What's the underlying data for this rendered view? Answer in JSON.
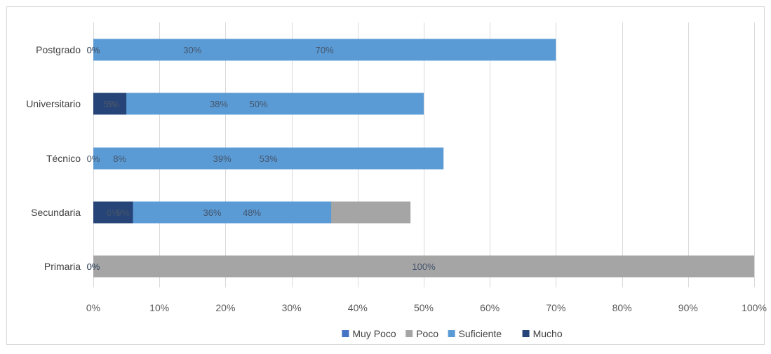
{
  "chart_data": {
    "type": "bar",
    "orientation": "horizontal",
    "stacked": "percent",
    "categories": [
      "Postgrado",
      "Universitario",
      "Técnico",
      "Secundaria",
      "Primaria"
    ],
    "series": [
      {
        "name": "Muy Poco",
        "color": "#4472C4",
        "values": [
          0,
          6,
          8,
          9,
          0
        ],
        "labels": [
          "0%",
          "6%",
          "8%",
          "9%",
          "0%"
        ]
      },
      {
        "name": "Poco",
        "color": "#A5A5A5",
        "values": [
          30,
          38,
          39,
          48,
          100
        ],
        "labels": [
          "30%",
          "38%",
          "39%",
          "48%",
          "100%"
        ]
      },
      {
        "name": "Suficiente",
        "color": "#5B9BD5",
        "values": [
          70,
          50,
          53,
          36,
          0
        ],
        "labels": [
          "70%",
          "50%",
          "53%",
          "36%",
          "0%"
        ]
      },
      {
        "name": "Mucho",
        "color": "#264478",
        "values": [
          0,
          5,
          0,
          6,
          0
        ],
        "labels": [
          "0%",
          "5%",
          "0%",
          "6%",
          "0%"
        ]
      }
    ],
    "xlim": [
      0,
      100
    ],
    "x_ticks": [
      "0%",
      "10%",
      "20%",
      "30%",
      "40%",
      "50%",
      "60%",
      "70%",
      "80%",
      "90%",
      "100%"
    ],
    "grid": true,
    "legend_position": "bottom",
    "label_color": "#44546A"
  }
}
